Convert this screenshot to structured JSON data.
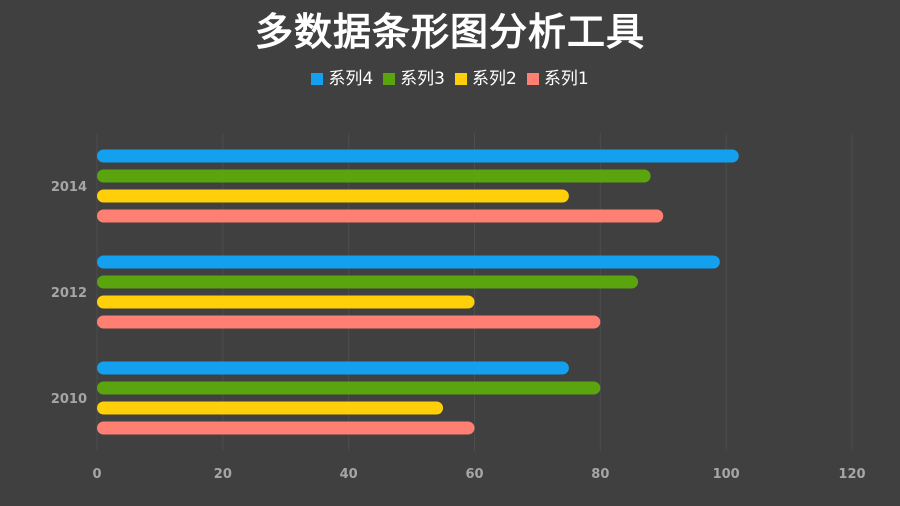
{
  "chart_data": {
    "type": "bar",
    "orientation": "horizontal",
    "title": "多数据条形图分析工具",
    "categories": [
      "2010",
      "2012",
      "2014"
    ],
    "series": [
      {
        "name": "系列1",
        "color": "#ff7f73",
        "values": [
          60,
          80,
          90
        ]
      },
      {
        "name": "系列2",
        "color": "#ffd00a",
        "values": [
          55,
          60,
          75
        ]
      },
      {
        "name": "系列3",
        "color": "#5aa50e",
        "values": [
          80,
          86,
          88
        ]
      },
      {
        "name": "系列4",
        "color": "#12a0ef",
        "values": [
          75,
          99,
          102
        ]
      }
    ],
    "legend_order": [
      "系列4",
      "系列3",
      "系列2",
      "系列1"
    ],
    "xlim": [
      0,
      120
    ],
    "xticks": [
      "0",
      "20",
      "40",
      "60",
      "80",
      "100",
      "120"
    ],
    "grid": true,
    "legend_position": "top-center"
  }
}
